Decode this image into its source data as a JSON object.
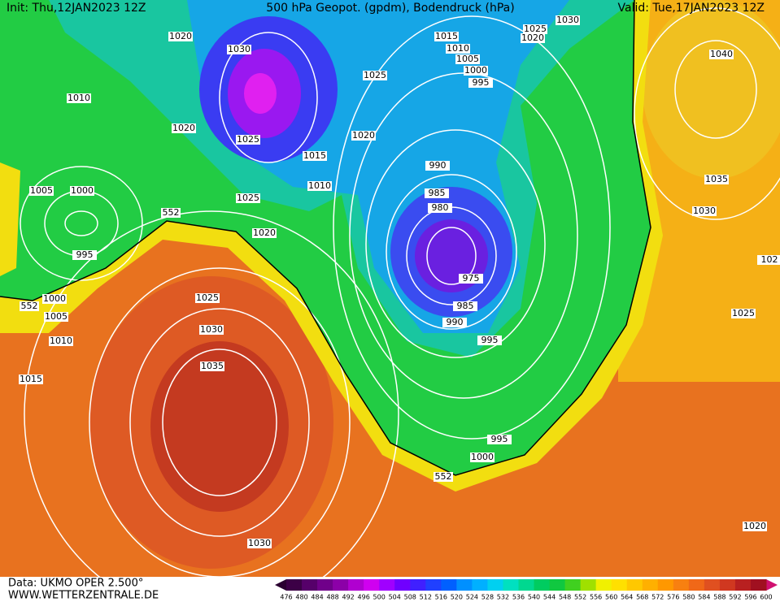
{
  "header": {
    "init": "Init: Thu,12JAN2023 12Z",
    "title": "500 hPa Geopot. (gpdm), Bodendruck (hPa)",
    "valid": "Valid: Tue,17JAN2023 12Z"
  },
  "isobar_labels": [
    "1030",
    "1025",
    "1020",
    "1015",
    "1010",
    "1005",
    "1000",
    "995",
    "1020",
    "1030",
    "1025",
    "1010",
    "1020",
    "1025",
    "1020",
    "1015",
    "1010",
    "990",
    "985",
    "980",
    "1025",
    "1005",
    "1000",
    "995",
    "1020",
    "975",
    "985",
    "990",
    "995",
    "1000",
    "1005",
    "1010",
    "1015",
    "1025",
    "1030",
    "1035",
    "1040",
    "1035",
    "1030",
    "1025",
    "995",
    "1000",
    "1030",
    "1020",
    "102"
  ],
  "geopotential_labels": [
    "552",
    "552",
    "552"
  ],
  "legend": {
    "levels": [
      476,
      480,
      484,
      488,
      492,
      496,
      500,
      504,
      508,
      512,
      516,
      520,
      524,
      528,
      532,
      536,
      540,
      544,
      548,
      552,
      556,
      560,
      564,
      568,
      572,
      576,
      580,
      584,
      588,
      592,
      596,
      600
    ]
  },
  "footer": {
    "source": "Data: UKMO OPER 2.500°",
    "site": "WWW.WETTERZENTRALE.DE"
  }
}
